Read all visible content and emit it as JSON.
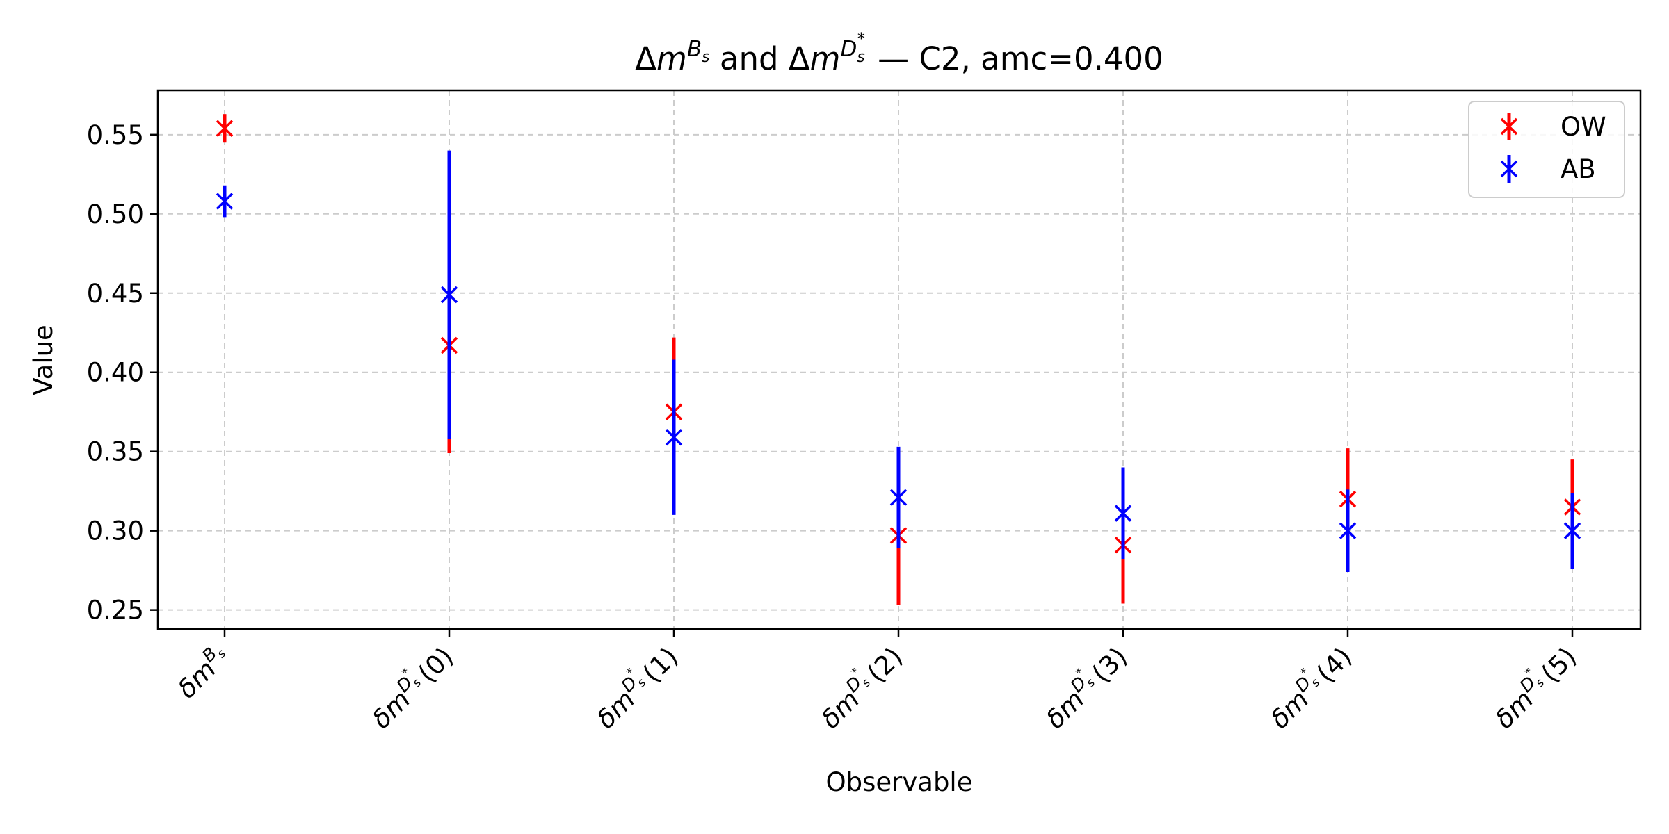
{
  "chart_data": {
    "type": "scatter",
    "title": {
      "prefix": "Δm",
      "sup1": "B",
      "sup1_sub": "s",
      "mid": " and Δm",
      "sup2": "D",
      "sup2_sub": "s",
      "sup2_star": "*",
      "suffix": " — C2, amc=0.400"
    },
    "xlabel": "Observable",
    "ylabel": "Value",
    "ylim": [
      0.238,
      0.578
    ],
    "yticks": [
      "0.25",
      "0.30",
      "0.35",
      "0.40",
      "0.45",
      "0.50",
      "0.55"
    ],
    "grid": true,
    "legend_position": "top-right",
    "categories": [
      {
        "base": "δm",
        "sup": "B",
        "sub": "s",
        "star": "",
        "suffix": ""
      },
      {
        "base": "δm",
        "sup": "D",
        "sub": "s",
        "star": "*",
        "suffix": "(0)"
      },
      {
        "base": "δm",
        "sup": "D",
        "sub": "s",
        "star": "*",
        "suffix": "(1)"
      },
      {
        "base": "δm",
        "sup": "D",
        "sub": "s",
        "star": "*",
        "suffix": "(2)"
      },
      {
        "base": "δm",
        "sup": "D",
        "sub": "s",
        "star": "*",
        "suffix": "(3)"
      },
      {
        "base": "δm",
        "sup": "D",
        "sub": "s",
        "star": "*",
        "suffix": "(4)"
      },
      {
        "base": "δm",
        "sup": "D",
        "sub": "s",
        "star": "*",
        "suffix": "(5)"
      }
    ],
    "series": [
      {
        "name": "OW",
        "color": "#ff0000",
        "values": [
          0.554,
          0.417,
          0.375,
          0.297,
          0.291,
          0.32,
          0.315
        ],
        "errors": [
          0.009,
          0.068,
          0.047,
          0.044,
          0.037,
          0.032,
          0.03
        ]
      },
      {
        "name": "AB",
        "color": "#0000ff",
        "values": [
          0.508,
          0.449,
          0.359,
          0.321,
          0.311,
          0.3,
          0.3
        ],
        "errors": [
          0.01,
          0.091,
          0.049,
          0.032,
          0.029,
          0.026,
          0.024
        ]
      }
    ]
  }
}
